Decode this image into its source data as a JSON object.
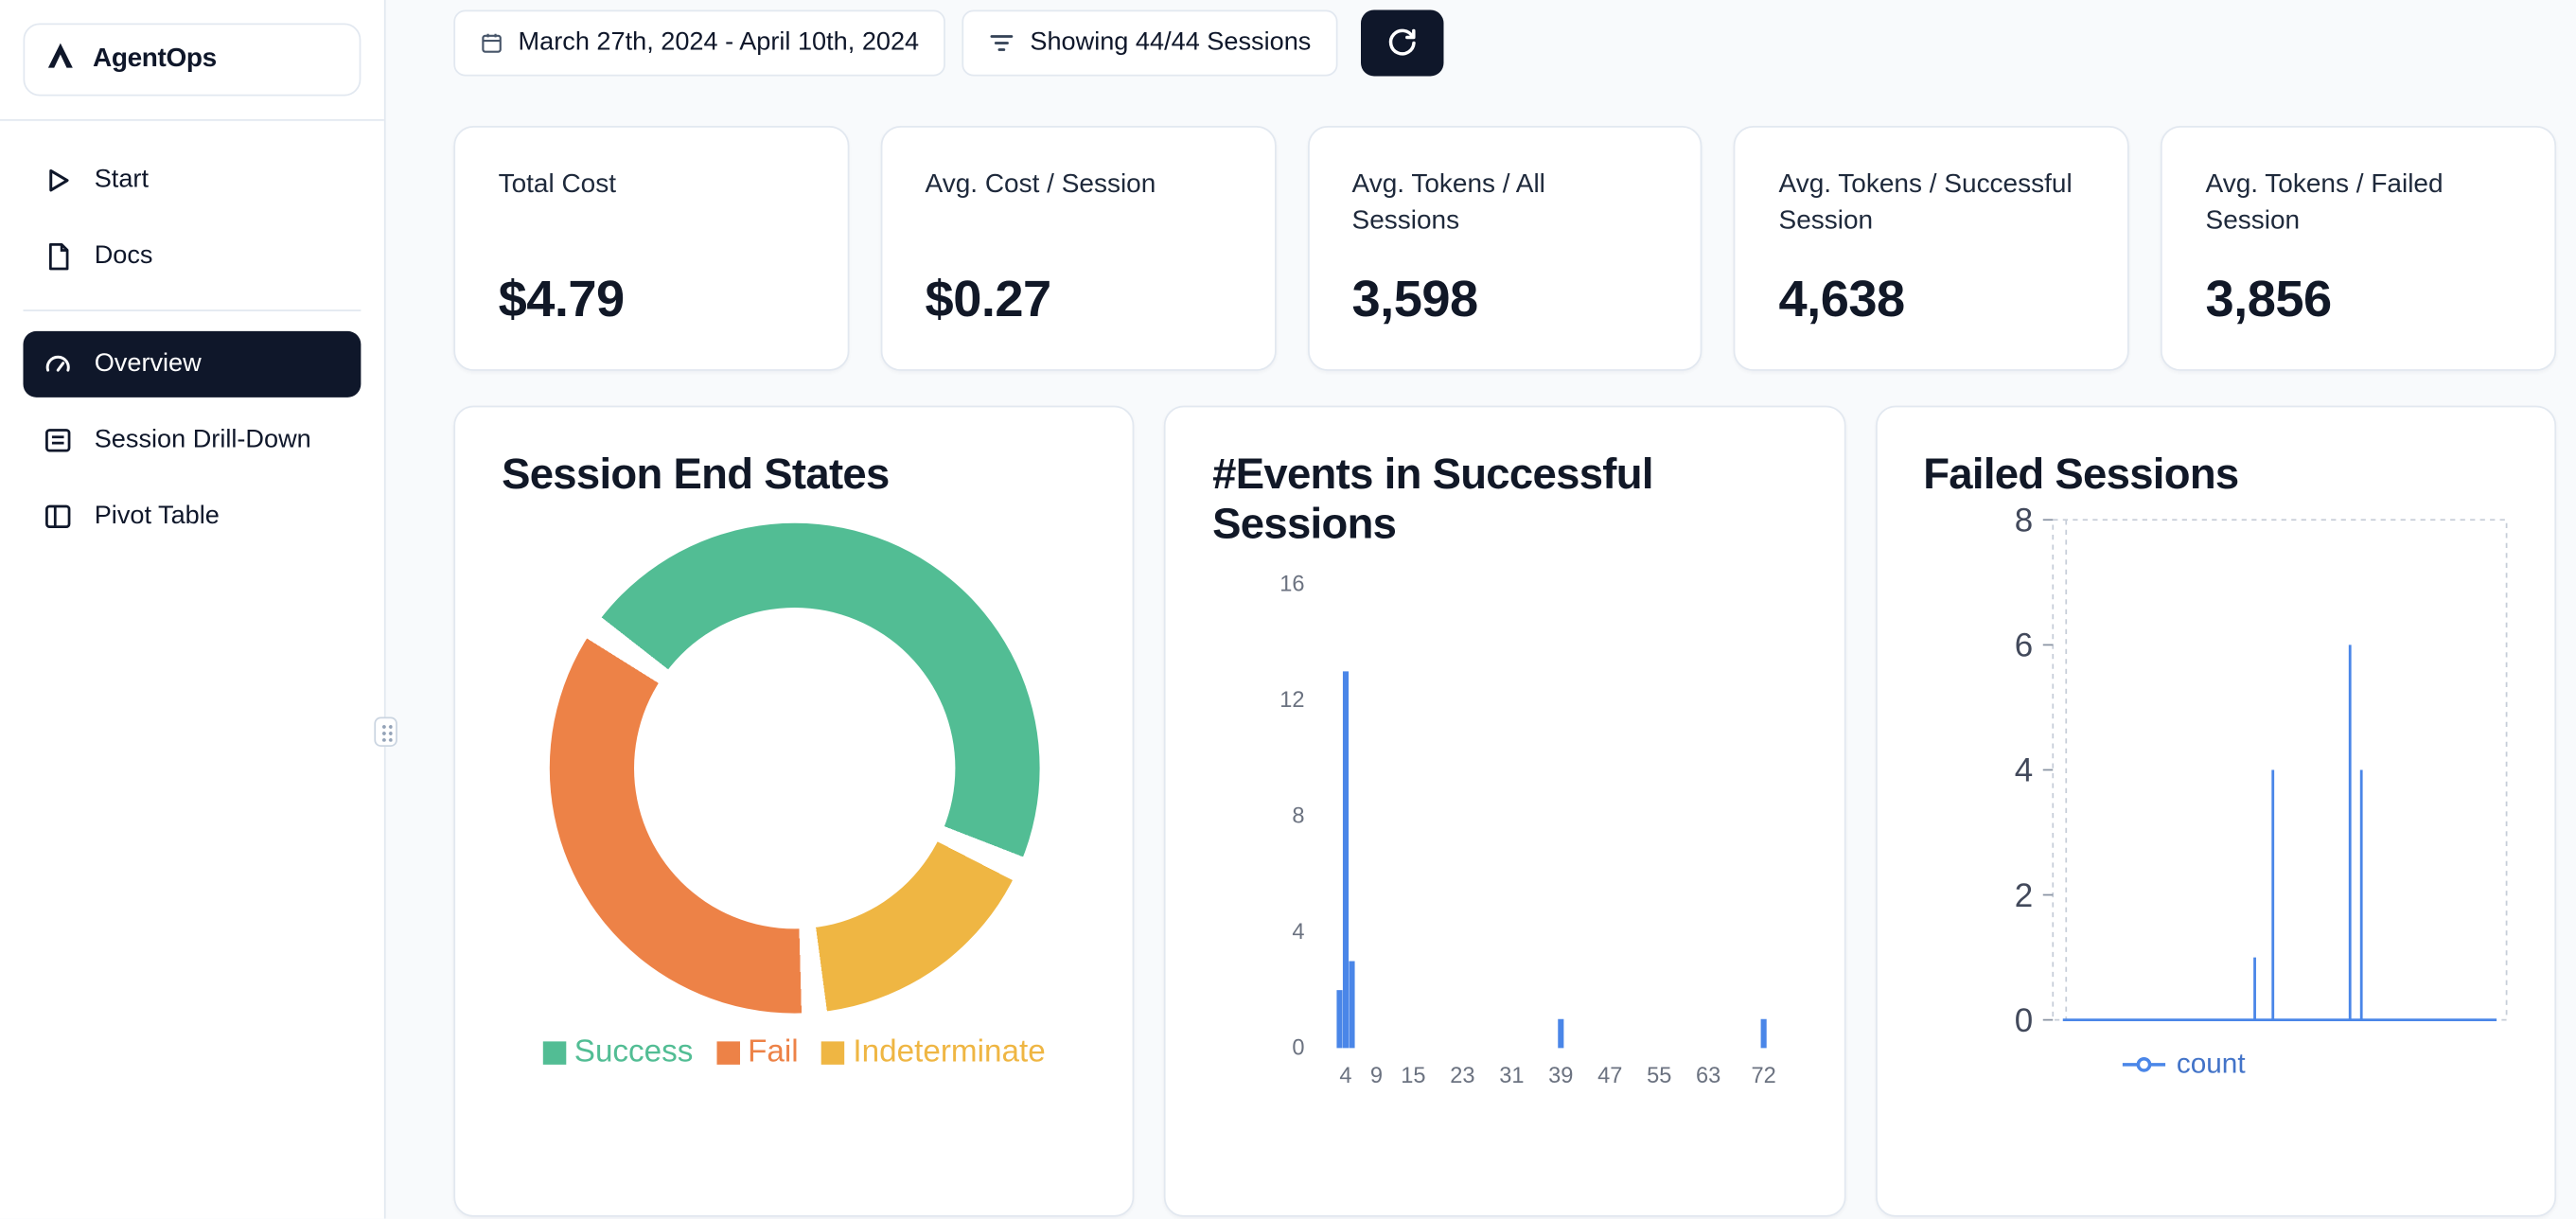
{
  "app": {
    "name": "AgentOps"
  },
  "sidebar": {
    "items": [
      {
        "label": "Start"
      },
      {
        "label": "Docs"
      },
      {
        "label": "Overview",
        "active": true
      },
      {
        "label": "Session Drill-Down"
      },
      {
        "label": "Pivot Table"
      }
    ]
  },
  "toolbar": {
    "date_range": "March 27th, 2024 - April 10th, 2024",
    "sessions_filter": "Showing 44/44 Sessions"
  },
  "stats": [
    {
      "label": "Total Cost",
      "value": "$4.79"
    },
    {
      "label": "Avg. Cost / Session",
      "value": "$0.27"
    },
    {
      "label": "Avg. Tokens / All Sessions",
      "value": "3,598"
    },
    {
      "label": "Avg. Tokens / Successful Session",
      "value": "4,638"
    },
    {
      "label": "Avg. Tokens / Failed Session",
      "value": "3,856"
    }
  ],
  "chart_data": [
    {
      "type": "pie",
      "title": "Session End States",
      "donut": true,
      "start_angle_deg": 305,
      "slices": [
        {
          "label": "Success",
          "value": 47,
          "color": "#52bd94"
        },
        {
          "label": "Indeterminate",
          "value": 17,
          "color": "#efb643"
        },
        {
          "label": "Fail",
          "value": 36,
          "color": "#ed8247"
        }
      ],
      "legend": [
        {
          "label": "Success",
          "color": "#52bd94"
        },
        {
          "label": "Fail",
          "color": "#ed8247"
        },
        {
          "label": "Indeterminate",
          "color": "#efb643"
        }
      ]
    },
    {
      "type": "bar",
      "title": "#Events in Successful Sessions",
      "x_ticks": [
        4,
        9,
        15,
        23,
        31,
        39,
        47,
        55,
        63,
        72
      ],
      "y_ticks": [
        0,
        4,
        8,
        12,
        16
      ],
      "xlim": [
        0,
        80
      ],
      "ylim": [
        0,
        16
      ],
      "bars": [
        {
          "x": 3,
          "y": 2
        },
        {
          "x": 4,
          "y": 13
        },
        {
          "x": 5,
          "y": 3
        },
        {
          "x": 39,
          "y": 1
        },
        {
          "x": 72,
          "y": 1
        }
      ],
      "bar_color": "#4a86e8"
    },
    {
      "type": "line",
      "title": "Failed Sessions",
      "y_ticks": [
        0,
        2,
        4,
        6,
        8
      ],
      "ylim": [
        0,
        8
      ],
      "grid": "dashed",
      "series": [
        {
          "name": "count",
          "color": "#4a86e8",
          "spikes": [
            {
              "x": 0.445,
              "y": 1
            },
            {
              "x": 0.485,
              "y": 4
            },
            {
              "x": 0.655,
              "y": 6
            },
            {
              "x": 0.68,
              "y": 4
            }
          ]
        }
      ]
    }
  ],
  "colors": {
    "accent_dark": "#0f172a",
    "success": "#52bd94",
    "fail": "#ed8247",
    "indeterminate": "#efb643",
    "chart_blue": "#4a86e8"
  }
}
